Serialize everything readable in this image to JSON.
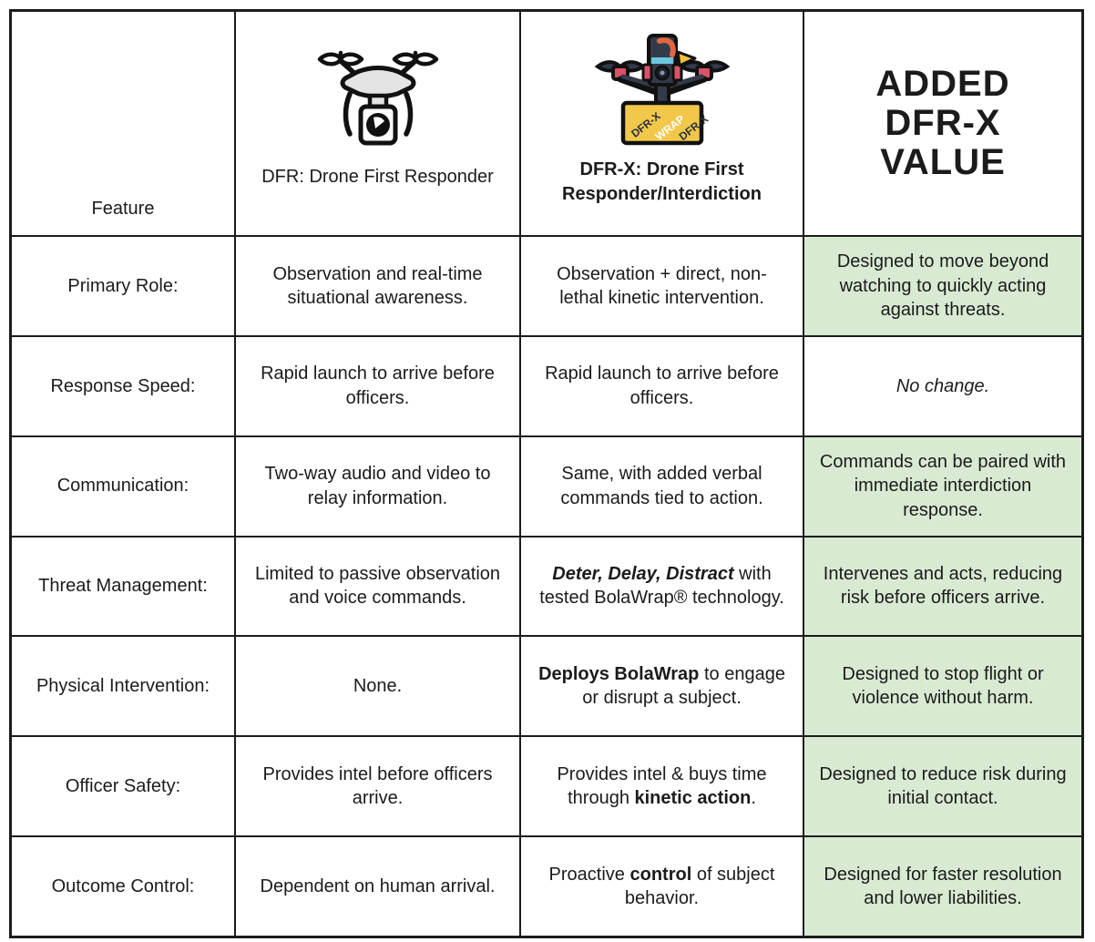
{
  "colors": {
    "highlight_green": "#d9ead3",
    "border_ink": "#1c1c1c",
    "banner_yellow": "#f2c84b",
    "drone_accent_red": "#d95268",
    "drone_body_dark": "#333b4b"
  },
  "header": {
    "feature_label": "Feature",
    "dfr": {
      "icon": "dfr-camera-drone-icon",
      "title": "DFR: Drone First Responder"
    },
    "dfrx": {
      "icon": "dfrx-racing-drone-icon",
      "title": "DFR-X: Drone First Responder/Interdiction",
      "banner": [
        "DFR-X",
        "WRAP",
        "DFR-X"
      ]
    },
    "value": {
      "title_lines": [
        "ADDED",
        "DFR-X",
        "VALUE"
      ]
    }
  },
  "rows": [
    {
      "feature": "Primary Role:",
      "dfr": [
        {
          "text": "Observation and real-time situational awareness."
        }
      ],
      "dfrx": [
        {
          "text": "Observation + direct, non-lethal kinetic intervention."
        }
      ],
      "value": [
        {
          "text": "Designed to move beyond watching to quickly acting against threats."
        }
      ],
      "value_highlighted": true
    },
    {
      "feature": "Response Speed:",
      "dfr": [
        {
          "text": "Rapid launch to arrive before officers."
        }
      ],
      "dfrx": [
        {
          "text": "Rapid launch to arrive before officers."
        }
      ],
      "value": [
        {
          "text": "No change.",
          "italic": true
        }
      ],
      "value_highlighted": false
    },
    {
      "feature": "Communication:",
      "dfr": [
        {
          "text": "Two-way audio and video to relay information."
        }
      ],
      "dfrx": [
        {
          "text": "Same, with added verbal commands tied to action."
        }
      ],
      "value": [
        {
          "text": "Commands can be paired with immediate interdiction response."
        }
      ],
      "value_highlighted": true
    },
    {
      "feature": "Threat Management:",
      "dfr": [
        {
          "text": "Limited to passive observation and voice commands."
        }
      ],
      "dfrx": [
        {
          "text": "Deter, Delay, Distract",
          "bold": true,
          "italic": true
        },
        {
          "text": " with tested BolaWrap® technology."
        }
      ],
      "value": [
        {
          "text": "Intervenes and acts, reducing risk before officers arrive."
        }
      ],
      "value_highlighted": true
    },
    {
      "feature": "Physical Intervention:",
      "dfr": [
        {
          "text": "None."
        }
      ],
      "dfrx": [
        {
          "text": "Deploys BolaWrap",
          "bold": true
        },
        {
          "text": " to engage or disrupt a subject."
        }
      ],
      "value": [
        {
          "text": "Designed to stop flight or violence without harm."
        }
      ],
      "value_highlighted": true
    },
    {
      "feature": "Officer Safety:",
      "dfr": [
        {
          "text": "Provides intel before officers arrive."
        }
      ],
      "dfrx": [
        {
          "text": "Provides intel & buys time through "
        },
        {
          "text": "kinetic action",
          "bold": true
        },
        {
          "text": "."
        }
      ],
      "value": [
        {
          "text": "Designed to reduce risk during initial contact."
        }
      ],
      "value_highlighted": true
    },
    {
      "feature": "Outcome Control:",
      "dfr": [
        {
          "text": "Dependent on human arrival."
        }
      ],
      "dfrx": [
        {
          "text": "Proactive "
        },
        {
          "text": "control",
          "bold": true
        },
        {
          "text": " of subject behavior."
        }
      ],
      "value": [
        {
          "text": "Designed for faster resolution and lower liabilities."
        }
      ],
      "value_highlighted": true
    }
  ]
}
